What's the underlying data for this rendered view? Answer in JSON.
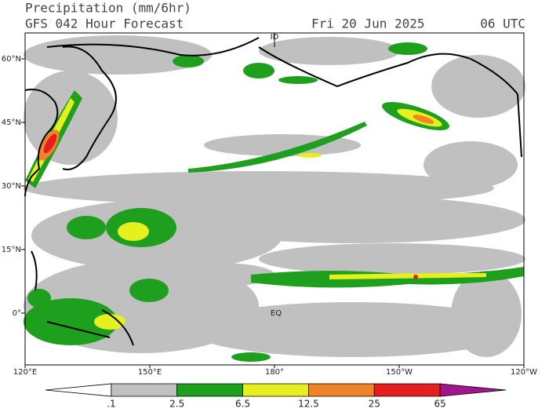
{
  "header": {
    "title": "Precipitation (mm/6hr)",
    "subtitle": "GFS 042 Hour Forecast",
    "date": "Fri 20 Jun 2025",
    "time": "06 UTC"
  },
  "axes": {
    "lat_labels": [
      "60°N",
      "45°N",
      "30°N",
      "15°N",
      "0°"
    ],
    "lon_labels": [
      "120°E",
      "150°E",
      "180°",
      "150°W",
      "120°W"
    ]
  },
  "map_labels": {
    "dateline": "ID",
    "equator": "EQ"
  },
  "colorbar": {
    "labels": [
      ".1",
      "2.5",
      "6.5",
      "12.5",
      "25",
      "65"
    ],
    "colors": [
      "#ffffff",
      "#c0c0c0",
      "#1ea01e",
      "#e6f01e",
      "#f08228",
      "#e61e1e",
      "#a0148c"
    ]
  }
}
